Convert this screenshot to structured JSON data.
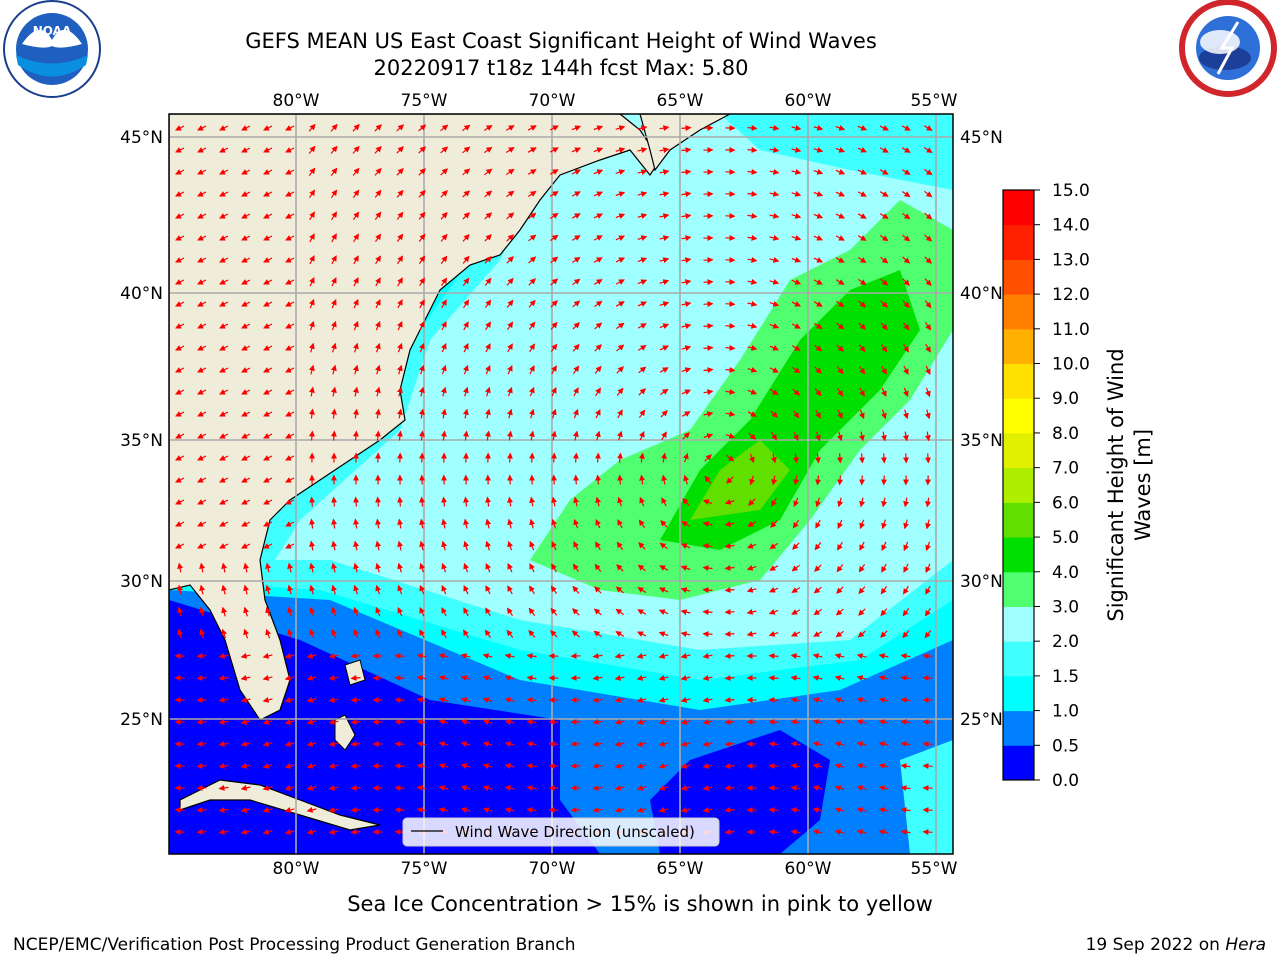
{
  "title": {
    "line1": "GEFS MEAN US East Coast Significant Height of Wind Waves",
    "line2": "20220917 t18z 144h fcst   Max: 5.80"
  },
  "logos": {
    "left": {
      "text": "NOAA",
      "ring_text": "NATIONAL OCEANIC AND ATMOSPHERIC ADMINISTRATION · U.S. DEPARTMENT OF COMMERCE"
    },
    "right": {
      "ring_text": "NATIONAL WEATHER SERVICE"
    }
  },
  "map": {
    "lon_labels": [
      "80°W",
      "75°W",
      "70°W",
      "65°W",
      "60°W",
      "55°W"
    ],
    "lat_labels": [
      "45°N",
      "40°N",
      "35°N",
      "30°N",
      "25°N"
    ],
    "legend": "Wind Wave Direction (unscaled)",
    "arrow_color": "#ff0000",
    "land_color": "#efedda"
  },
  "colorbar": {
    "label_line1": "Significant Height of Wind",
    "label_line2": "Waves [m]",
    "ticks": [
      "0.0",
      "0.5",
      "1.0",
      "1.5",
      "2.0",
      "3.0",
      "4.0",
      "5.0",
      "6.0",
      "7.0",
      "8.0",
      "9.0",
      "10.0",
      "11.0",
      "12.0",
      "13.0",
      "14.0",
      "15.0"
    ],
    "colors": [
      "#0000ff",
      "#0080ff",
      "#00ffff",
      "#40ffff",
      "#a0ffff",
      "#50ff70",
      "#00e000",
      "#60e000",
      "#b0ee00",
      "#e0f000",
      "#ffff00",
      "#ffe000",
      "#ffb000",
      "#ff8000",
      "#ff5000",
      "#ff2000",
      "#ff0000"
    ]
  },
  "footer": {
    "note": "Sea Ice Concentration > 15% is shown in pink to yellow",
    "left": "NCEP/EMC/Verification Post Processing Product Generation Branch",
    "right_prefix": "19 Sep 2022 on ",
    "right_host": "Hera"
  }
}
